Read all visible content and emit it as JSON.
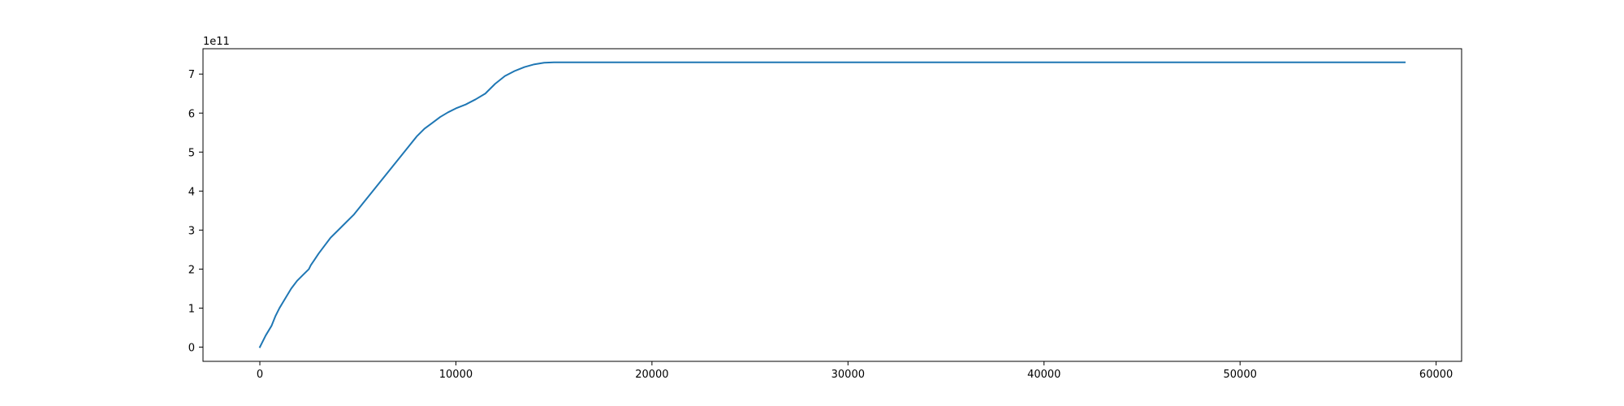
{
  "chart_data": {
    "type": "line",
    "title": "",
    "xlabel": "",
    "ylabel": "",
    "y_offset_label": "1e11",
    "xlim": [
      -2900,
      61300
    ],
    "ylim": [
      -0.365,
      7.65
    ],
    "x_ticks": [
      0,
      10000,
      20000,
      30000,
      40000,
      50000,
      60000
    ],
    "x_tick_labels": [
      "0",
      "10000",
      "20000",
      "30000",
      "40000",
      "50000",
      "60000"
    ],
    "y_ticks": [
      0,
      1,
      2,
      3,
      4,
      5,
      6,
      7
    ],
    "y_tick_labels": [
      "0",
      "1",
      "2",
      "3",
      "4",
      "5",
      "6",
      "7"
    ],
    "grid": false,
    "legend": "none",
    "series": [
      {
        "color": "#1f77b4",
        "x": [
          0,
          300,
          600,
          800,
          1000,
          1300,
          1600,
          1900,
          2200,
          2500,
          2600,
          2800,
          3000,
          3300,
          3600,
          4000,
          4400,
          4800,
          5200,
          5600,
          6000,
          6400,
          6800,
          7200,
          7600,
          8000,
          8400,
          8800,
          9200,
          9600,
          10000,
          10500,
          11000,
          11500,
          12000,
          12500,
          13000,
          13500,
          14000,
          14500,
          15000,
          20000,
          30000,
          40000,
          50000,
          58400
        ],
        "y": [
          0,
          0.3,
          0.55,
          0.8,
          1.0,
          1.25,
          1.5,
          1.7,
          1.85,
          2.0,
          2.1,
          2.25,
          2.4,
          2.6,
          2.8,
          3.0,
          3.2,
          3.4,
          3.65,
          3.9,
          4.15,
          4.4,
          4.65,
          4.9,
          5.15,
          5.4,
          5.6,
          5.75,
          5.9,
          6.02,
          6.12,
          6.22,
          6.35,
          6.5,
          6.75,
          6.95,
          7.08,
          7.18,
          7.25,
          7.29,
          7.3,
          7.3,
          7.3,
          7.3,
          7.3,
          7.3
        ]
      }
    ]
  }
}
